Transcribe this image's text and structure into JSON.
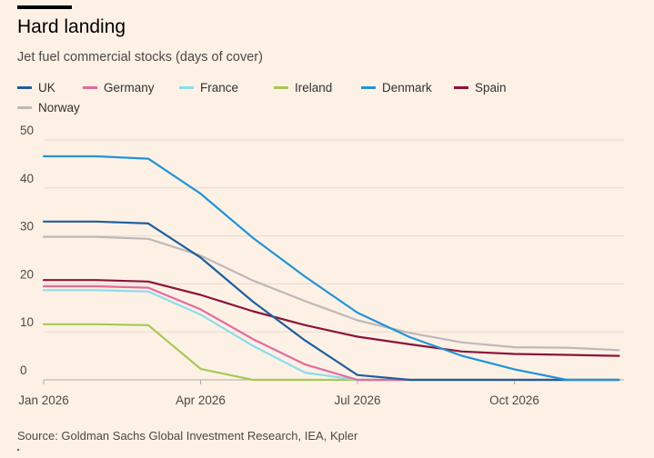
{
  "header": {
    "title": "Hard landing",
    "subtitle": "Jet fuel commercial stocks (days of cover)"
  },
  "footer": {
    "source": "Source: Goldman Sachs Global Investment Research, IEA, Kpler"
  },
  "legend": {
    "items": [
      {
        "name": "UK",
        "color": "#1F5F9C"
      },
      {
        "name": "Germany",
        "color": "#E36B9C"
      },
      {
        "name": "France",
        "color": "#8BDDEB"
      },
      {
        "name": "Ireland",
        "color": "#A7C957"
      },
      {
        "name": "Denmark",
        "color": "#2393D6"
      },
      {
        "name": "Spain",
        "color": "#8B1538"
      },
      {
        "name": "Norway",
        "color": "#BDB9B9"
      }
    ]
  },
  "chart_data": {
    "type": "line",
    "title": "Hard landing",
    "subtitle": "Jet fuel commercial stocks (days of cover)",
    "xlabel": "",
    "ylabel": "",
    "ylim": [
      0,
      50
    ],
    "yticks": [
      0,
      10,
      20,
      30,
      40,
      50
    ],
    "xticks": [
      {
        "label": "Jan 2026",
        "month": 0
      },
      {
        "label": "Apr 2026",
        "month": 3
      },
      {
        "label": "Jul 2026",
        "month": 6
      },
      {
        "label": "Oct 2026",
        "month": 9
      }
    ],
    "grid": "horizontal",
    "legend_position": "top",
    "x": [
      0,
      1,
      2,
      3,
      4,
      5,
      6,
      7,
      8,
      9,
      10,
      11
    ],
    "series": [
      {
        "name": "UK",
        "color": "#1F5F9C",
        "values": [
          33,
          33,
          32.6,
          25.5,
          16.3,
          8.2,
          1.0,
          0,
          0,
          0,
          0,
          0
        ]
      },
      {
        "name": "Germany",
        "color": "#E36B9C",
        "values": [
          19.5,
          19.5,
          19.2,
          14.7,
          8.5,
          3.2,
          0,
          0,
          0,
          0,
          0,
          0
        ]
      },
      {
        "name": "France",
        "color": "#8BDDEB",
        "values": [
          18.7,
          18.7,
          18.4,
          13.6,
          7.1,
          1.5,
          0,
          0,
          0,
          0,
          0,
          0
        ]
      },
      {
        "name": "Ireland",
        "color": "#A7C957",
        "values": [
          11.6,
          11.6,
          11.4,
          2.3,
          0,
          0,
          0,
          0,
          0,
          0,
          0,
          0
        ]
      },
      {
        "name": "Denmark",
        "color": "#2393D6",
        "values": [
          46.6,
          46.6,
          46.1,
          38.8,
          29.6,
          21.5,
          14.0,
          8.9,
          5.0,
          2.2,
          0,
          0
        ]
      },
      {
        "name": "Spain",
        "color": "#8B1538",
        "values": [
          20.8,
          20.8,
          20.5,
          17.7,
          14.3,
          11.4,
          9.0,
          7.4,
          5.9,
          5.4,
          5.2,
          5.0
        ]
      },
      {
        "name": "Norway",
        "color": "#BDB9B9",
        "values": [
          29.8,
          29.8,
          29.4,
          25.9,
          20.7,
          16.4,
          12.4,
          9.8,
          7.8,
          6.8,
          6.7,
          6.2
        ]
      }
    ]
  }
}
